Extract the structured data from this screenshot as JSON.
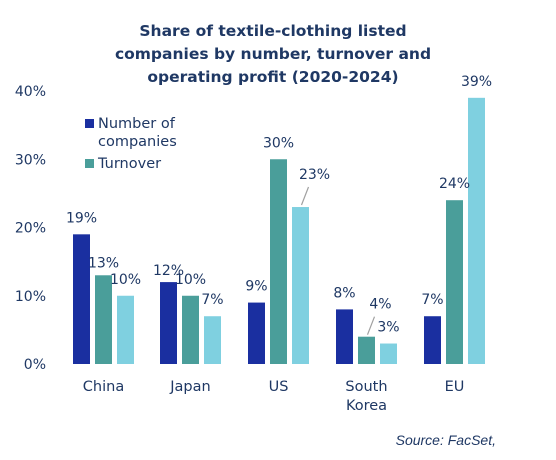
{
  "chart_data": {
    "type": "bar",
    "title_lines": [
      "Share of textile-clothing listed",
      "companies by number, turnover and",
      "operating profit (2020-2024)"
    ],
    "categories": [
      [
        "China"
      ],
      [
        "Japan"
      ],
      [
        "US"
      ],
      [
        "South",
        "Korea"
      ],
      [
        "EU"
      ]
    ],
    "series": [
      {
        "name": "Number of companies",
        "legend_lines": [
          "Number of",
          "companies"
        ],
        "color": "#1a2fa0",
        "values": [
          19,
          12,
          9,
          8,
          7
        ],
        "labels": [
          "19%",
          "12%",
          "9%",
          "8%",
          "7%"
        ]
      },
      {
        "name": "Turnover",
        "legend_lines": [
          "Turnover"
        ],
        "color": "#4a9e9a",
        "values": [
          13,
          10,
          30,
          4,
          24
        ],
        "labels": [
          "13%",
          "10%",
          "30%",
          "4%",
          "24%"
        ]
      },
      {
        "name": "",
        "legend_lines": [],
        "color": "#7fd0e0",
        "values": [
          10,
          7,
          23,
          3,
          39
        ],
        "labels": [
          "10%",
          "7%",
          "23%",
          "3%",
          "39%"
        ]
      }
    ],
    "y_ticks": [
      "0%",
      "10%",
      "20%",
      "30%",
      "40%"
    ],
    "ylim": [
      0,
      40
    ],
    "grid": false,
    "legend_position": "top-left",
    "source": "Source: FacSet,"
  }
}
